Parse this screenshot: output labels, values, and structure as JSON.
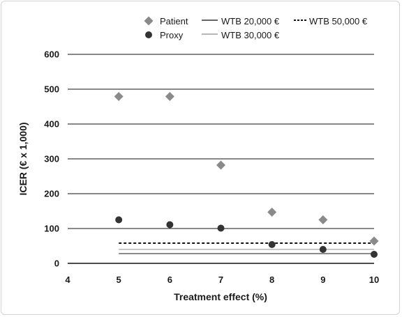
{
  "chart_data": {
    "type": "scatter",
    "xlabel": "Treatment effect (%)",
    "ylabel": "ICER (€ x 1,000)",
    "xlim": [
      4,
      10
    ],
    "ylim": [
      0,
      600
    ],
    "x_ticks": [
      "4",
      "5",
      "6",
      "7",
      "8",
      "9",
      "10"
    ],
    "y_ticks": [
      "0",
      "100",
      "200",
      "300",
      "400",
      "500",
      "600"
    ],
    "grid": "horizontal",
    "legend_position": "top-right",
    "series": [
      {
        "name": "Patient",
        "marker": "diamond",
        "color": "#8a8a8a",
        "points": [
          {
            "x": 5,
            "y": 479
          },
          {
            "x": 6,
            "y": 479
          },
          {
            "x": 7,
            "y": 282
          },
          {
            "x": 8,
            "y": 147
          },
          {
            "x": 9,
            "y": 125
          },
          {
            "x": 10,
            "y": 64
          }
        ]
      },
      {
        "name": "Proxy",
        "marker": "circle",
        "color": "#333333",
        "points": [
          {
            "x": 5,
            "y": 125
          },
          {
            "x": 6,
            "y": 111
          },
          {
            "x": 7,
            "y": 101
          },
          {
            "x": 8,
            "y": 54
          },
          {
            "x": 9,
            "y": 40
          },
          {
            "x": 10,
            "y": 26
          }
        ]
      }
    ],
    "reference_lines": [
      {
        "name": "WTB 20,000 €",
        "y": 28,
        "x_range": [
          5,
          10
        ],
        "style": "solid",
        "color": "#666666"
      },
      {
        "name": "WTB 30,000 €",
        "y": 40,
        "x_range": [
          5,
          10
        ],
        "style": "solid",
        "color": "#b5b5b5"
      },
      {
        "name": "WTB 50,000 €",
        "y": 58,
        "x_range": [
          5,
          10
        ],
        "style": "dashed",
        "color": "#111111"
      }
    ]
  }
}
